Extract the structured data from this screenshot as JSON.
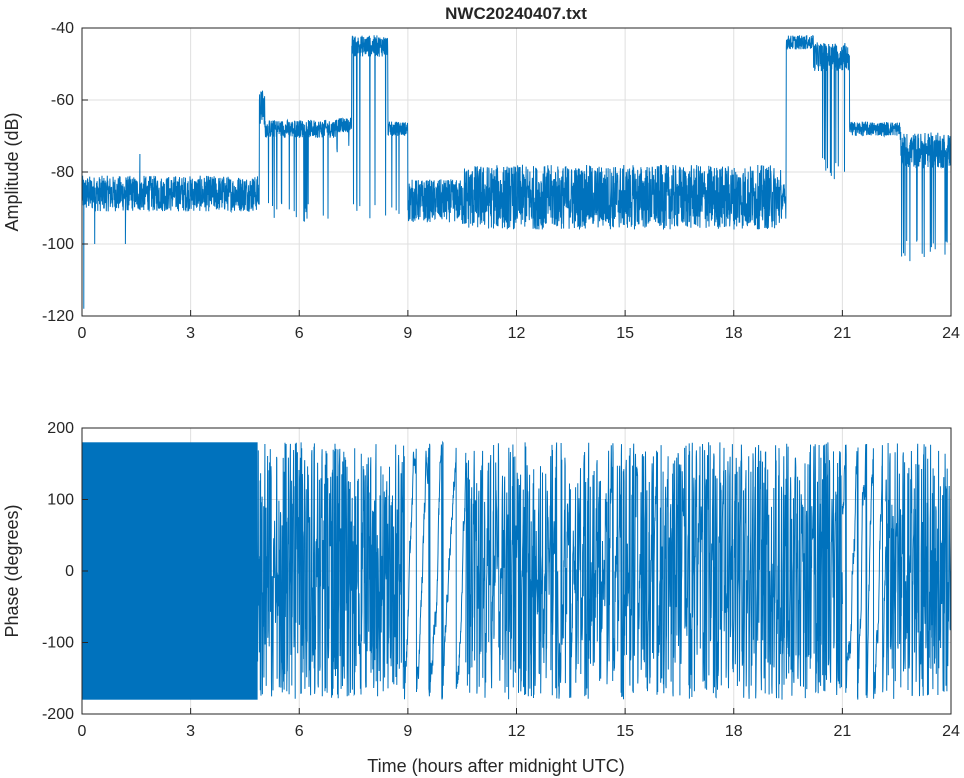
{
  "chart_data": [
    {
      "type": "line",
      "title": "NWC20240407.txt",
      "xlabel": "",
      "ylabel": "Amplitude (dB)",
      "xlim": [
        0,
        24
      ],
      "ylim": [
        -120,
        -40
      ],
      "xticks": [
        "0",
        "3",
        "6",
        "9",
        "12",
        "15",
        "18",
        "21",
        "24"
      ],
      "yticks": [
        "-40",
        "-60",
        "-80",
        "-100",
        "-120"
      ],
      "grid": true,
      "line_color": "#0072BD",
      "series": [
        {
          "segments": [
            {
              "x0": 0.0,
              "x1": 4.9,
              "base": -86,
              "noise": 5,
              "spikes": [
                [
                  0.05,
                  -118
                ],
                [
                  0.35,
                  -100
                ],
                [
                  1.2,
                  -100
                ],
                [
                  1.6,
                  -75
                ]
              ]
            },
            {
              "x0": 4.9,
              "x1": 5.05,
              "base": -62,
              "noise": 5
            },
            {
              "x0": 5.05,
              "x1": 7.0,
              "base": -68,
              "noise": 2.5,
              "drops": -94
            },
            {
              "x0": 7.0,
              "x1": 7.45,
              "base": -67,
              "noise": 2,
              "drops": -78
            },
            {
              "x0": 7.45,
              "x1": 8.45,
              "base": -45,
              "noise": 3,
              "drops": -93
            },
            {
              "x0": 8.45,
              "x1": 9.0,
              "base": -68,
              "noise": 2,
              "drops": -92
            },
            {
              "x0": 9.0,
              "x1": 10.5,
              "base": -88,
              "noise": 6
            },
            {
              "x0": 10.5,
              "x1": 19.3,
              "base": -87,
              "noise": 9
            },
            {
              "x0": 19.3,
              "x1": 19.45,
              "base": -88,
              "noise": 5
            },
            {
              "x0": 19.45,
              "x1": 20.2,
              "base": -44,
              "noise": 2
            },
            {
              "x0": 20.2,
              "x1": 21.2,
              "base": -48,
              "noise": 4,
              "drops": -82
            },
            {
              "x0": 21.2,
              "x1": 22.6,
              "base": -68,
              "noise": 2
            },
            {
              "x0": 22.6,
              "x1": 24.0,
              "base": -74,
              "noise": 5,
              "drops": -105
            }
          ]
        }
      ]
    },
    {
      "type": "line",
      "title": "",
      "xlabel": "Time (hours after midnight UTC)",
      "ylabel": "Phase (degrees)",
      "xlim": [
        0,
        24
      ],
      "ylim": [
        -200,
        200
      ],
      "xticks": [
        "0",
        "3",
        "6",
        "9",
        "12",
        "15",
        "18",
        "21",
        "24"
      ],
      "yticks": [
        "200",
        "100",
        "0",
        "-100",
        "-200"
      ],
      "grid": true,
      "line_color": "#0072BD",
      "series": [
        {
          "wrap_range": [
            -180,
            180
          ],
          "segments": [
            {
              "x0": 0.0,
              "x1": 4.85,
              "mode": "dense"
            },
            {
              "x0": 4.85,
              "x1": 8.9,
              "mode": "wrap",
              "rate": 18
            },
            {
              "x0": 8.9,
              "x1": 10.6,
              "mode": "wander",
              "rate": 3
            },
            {
              "x0": 10.6,
              "x1": 21.0,
              "mode": "wrap",
              "rate": 14
            },
            {
              "x0": 21.0,
              "x1": 22.2,
              "mode": "wander",
              "rate": 4
            },
            {
              "x0": 22.2,
              "x1": 24.0,
              "mode": "wrap",
              "rate": 16
            }
          ]
        }
      ]
    }
  ]
}
